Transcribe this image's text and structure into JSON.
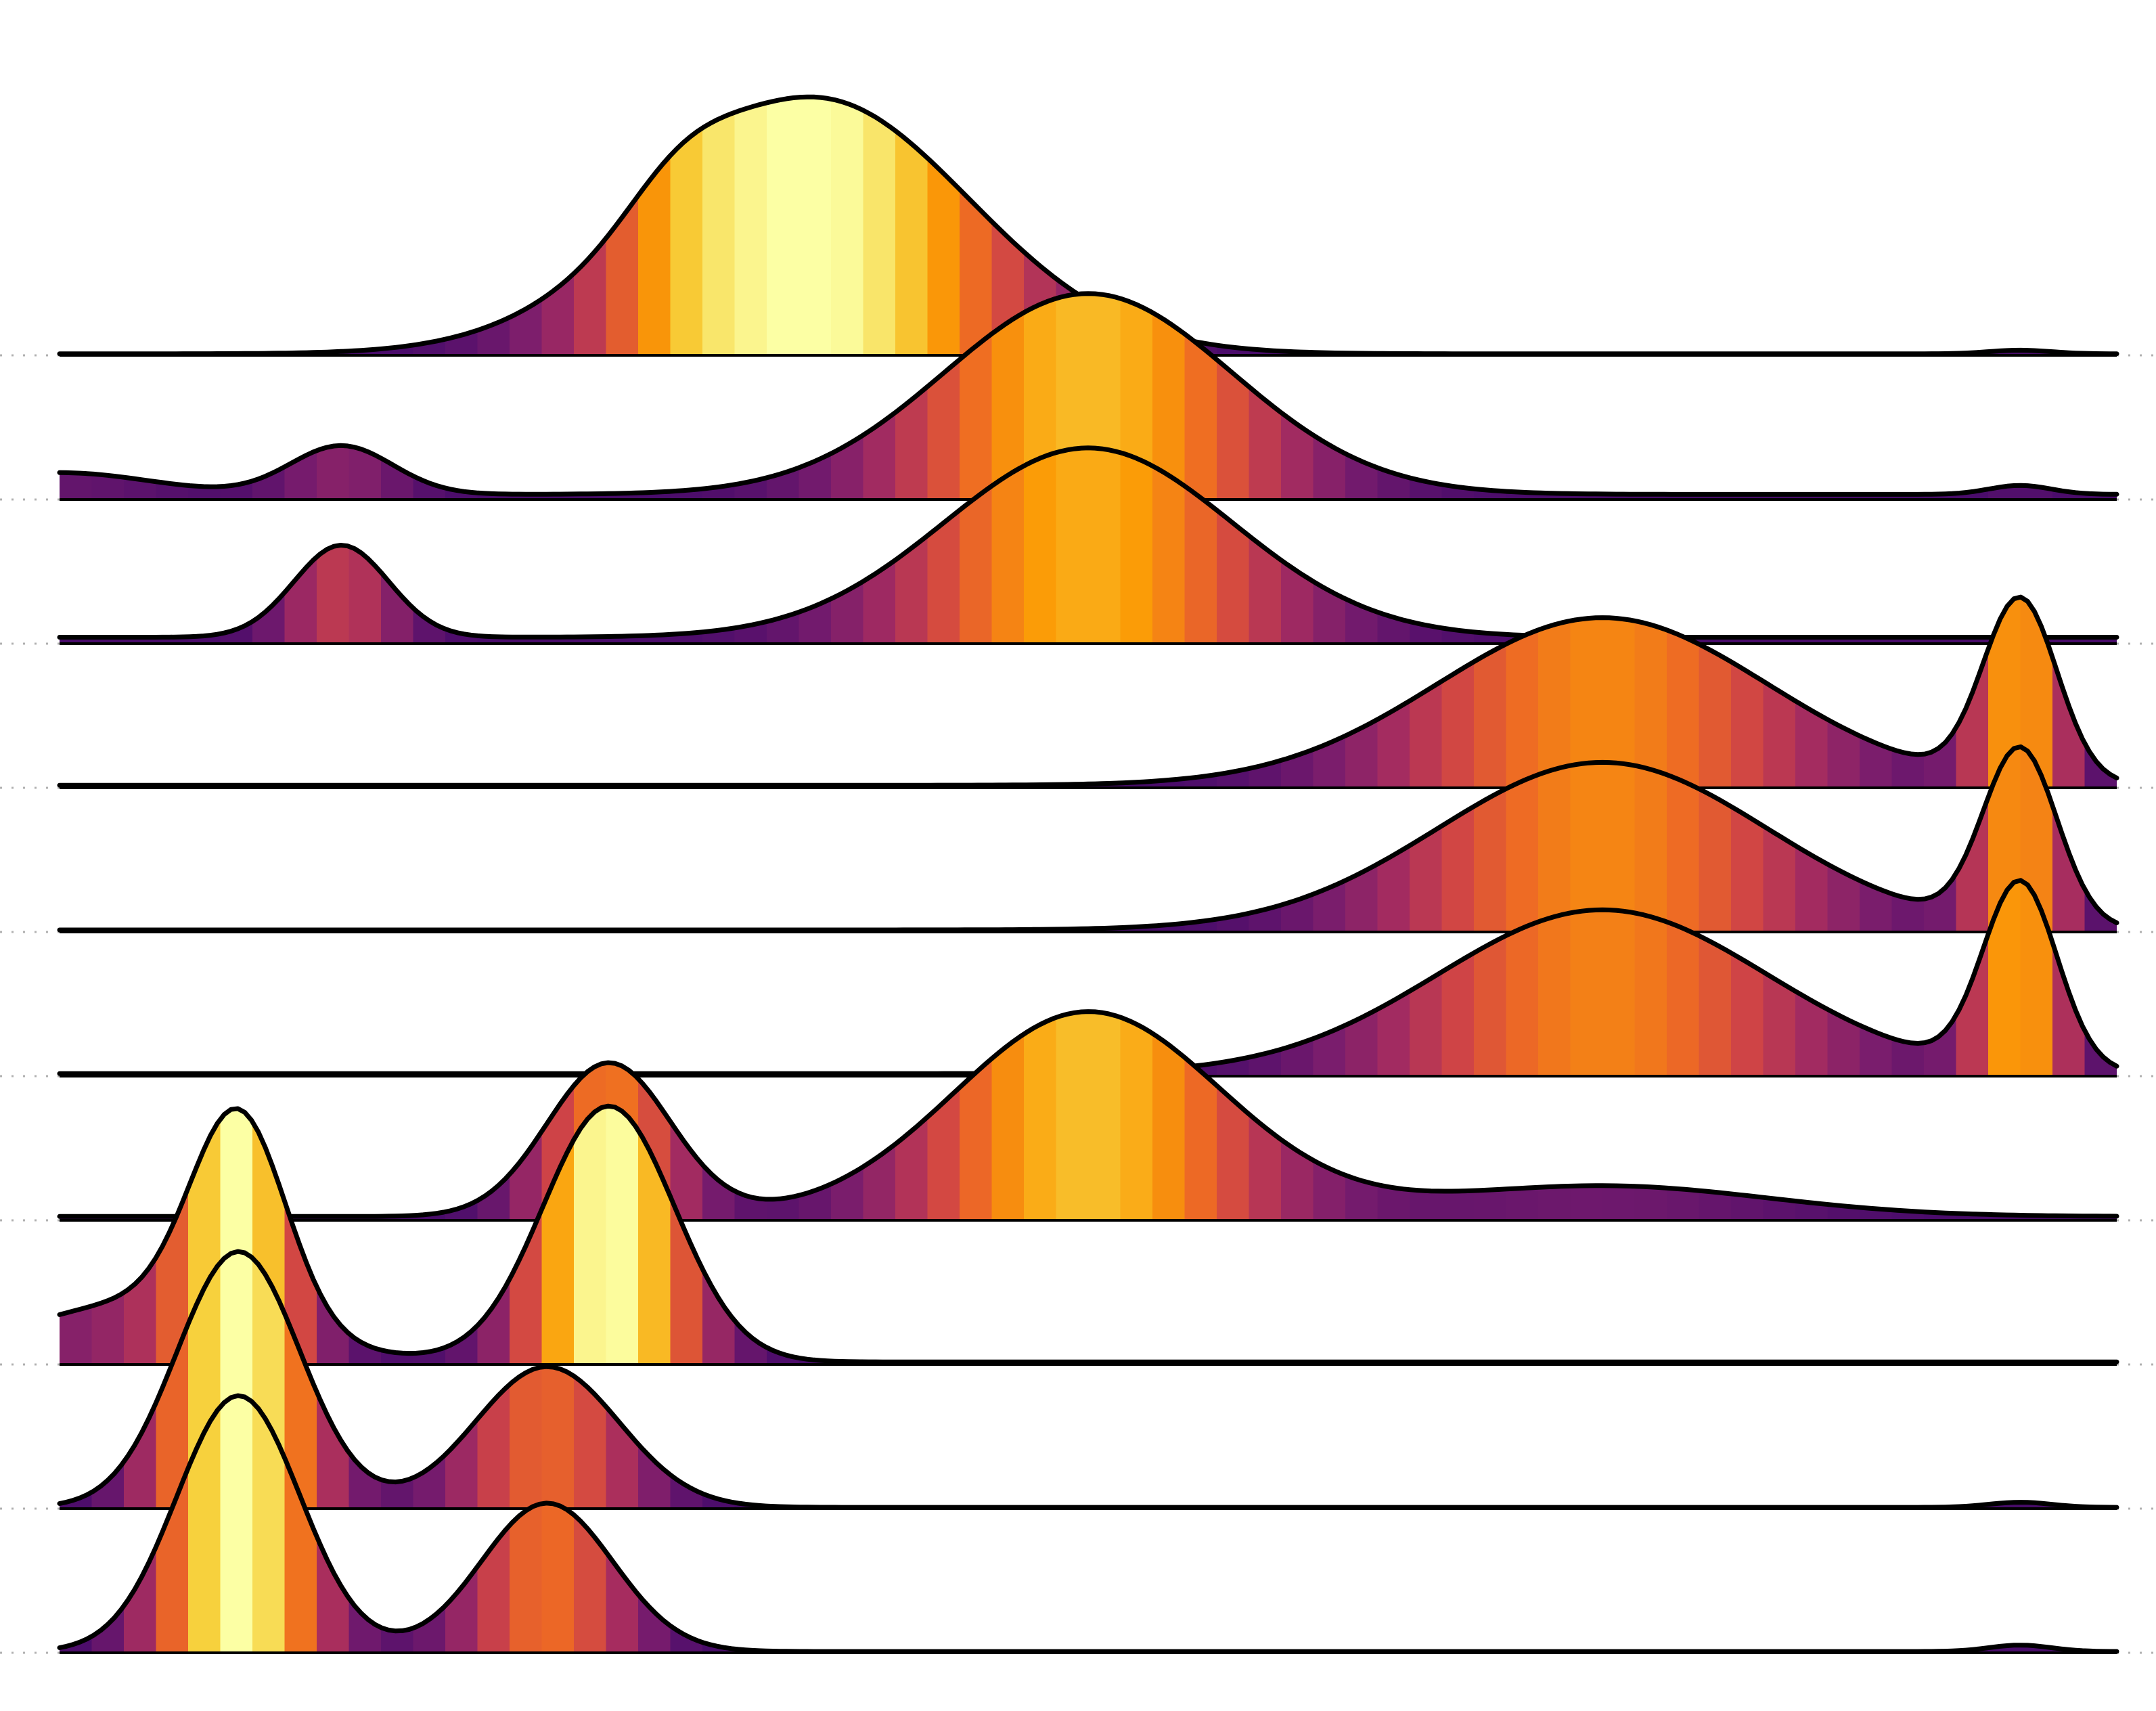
{
  "chart_data": {
    "type": "ridgeline",
    "title": "",
    "xlabel": "",
    "ylabel": "",
    "x_domain": [
      0,
      100
    ],
    "density_max": 1.0,
    "colormap": "inferno",
    "grid": {
      "horizontal_dotted_baselines": true
    },
    "legend": "none",
    "colormap_stops": [
      "#000004",
      "#1b0c41",
      "#4a0c6b",
      "#781c6d",
      "#a52c60",
      "#cf4446",
      "#ed6925",
      "#fb9b06",
      "#f7d13d",
      "#fcffa4"
    ],
    "series": [
      {
        "name": "",
        "components": [
          {
            "mu": 36.7,
            "sigma": 7.5,
            "w": 1.0
          },
          {
            "mu": 30.0,
            "sigma": 2.5,
            "w": 0.13
          },
          {
            "mu": 95.3,
            "sigma": 1.5,
            "w": 0.014
          }
        ],
        "floor": 0.006
      },
      {
        "name": "",
        "components": [
          {
            "mu": 50.0,
            "sigma": 7.0,
            "w": 0.785
          },
          {
            "mu": 13.7,
            "sigma": 2.5,
            "w": 0.19
          },
          {
            "mu": 0.0,
            "sigma": 4.5,
            "w": 0.085
          },
          {
            "mu": 95.3,
            "sigma": 1.5,
            "w": 0.035
          }
        ],
        "floor": 0.02
      },
      {
        "name": "",
        "components": [
          {
            "mu": 50.0,
            "sigma": 7.0,
            "w": 0.74
          },
          {
            "mu": 13.7,
            "sigma": 2.3,
            "w": 0.36
          }
        ],
        "floor": 0.025
      },
      {
        "name": "",
        "components": [
          {
            "mu": 75.0,
            "sigma": 8.0,
            "w": 0.655
          },
          {
            "mu": 95.3,
            "sigma": 1.8,
            "w": 0.71
          }
        ],
        "floor": 0.01
      },
      {
        "name": "",
        "components": [
          {
            "mu": 75.0,
            "sigma": 8.0,
            "w": 0.655
          },
          {
            "mu": 95.3,
            "sigma": 1.8,
            "w": 0.69
          }
        ],
        "floor": 0.008
      },
      {
        "name": "",
        "components": [
          {
            "mu": 75.0,
            "sigma": 8.0,
            "w": 0.64
          },
          {
            "mu": 95.3,
            "sigma": 1.8,
            "w": 0.73
          }
        ],
        "floor": 0.01
      },
      {
        "name": "",
        "components": [
          {
            "mu": 50.0,
            "sigma": 6.5,
            "w": 0.8
          },
          {
            "mu": 26.7,
            "sigma": 3.0,
            "w": 0.6
          },
          {
            "mu": 75.0,
            "sigma": 8.0,
            "w": 0.12
          }
        ],
        "floor": 0.015
      },
      {
        "name": "",
        "components": [
          {
            "mu": 8.7,
            "sigma": 2.3,
            "w": 0.82
          },
          {
            "mu": 26.7,
            "sigma": 3.2,
            "w": 1.0
          },
          {
            "mu": 4.0,
            "sigma": 6.0,
            "w": 0.23
          }
        ],
        "floor": 0.01
      },
      {
        "name": "",
        "components": [
          {
            "mu": 8.7,
            "sigma": 3.0,
            "w": 1.0
          },
          {
            "mu": 23.7,
            "sigma": 3.5,
            "w": 0.55
          },
          {
            "mu": 95.3,
            "sigma": 1.5,
            "w": 0.02
          }
        ],
        "floor": 0.005
      },
      {
        "name": "",
        "components": [
          {
            "mu": 8.7,
            "sigma": 3.0,
            "w": 1.0
          },
          {
            "mu": 23.7,
            "sigma": 3.2,
            "w": 0.58
          },
          {
            "mu": 95.3,
            "sigma": 1.5,
            "w": 0.025
          }
        ],
        "floor": 0.005
      }
    ]
  }
}
